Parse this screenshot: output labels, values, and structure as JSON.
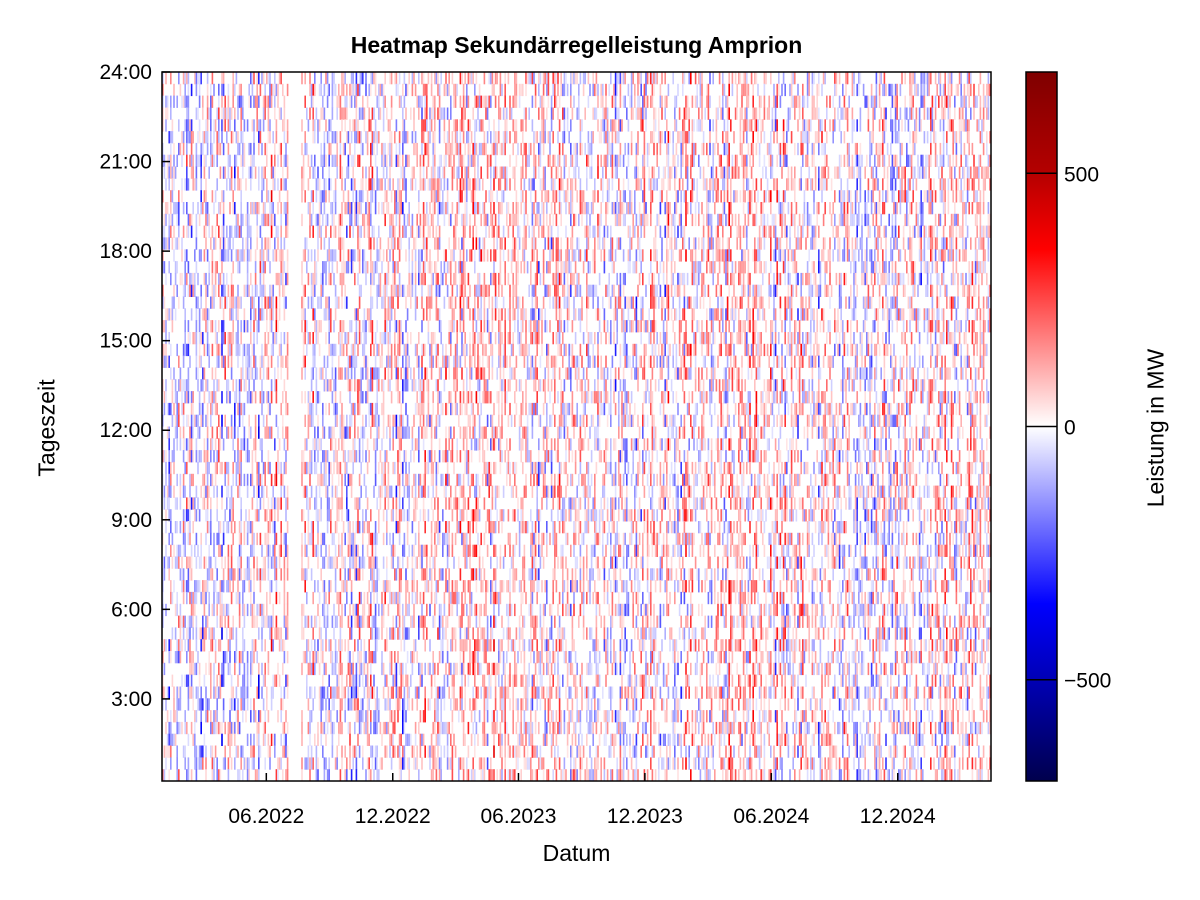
{
  "chart_data": {
    "type": "heatmap",
    "title": "Heatmap Sekundärregelleistung Amprion",
    "xlabel": "Datum",
    "ylabel": "Tageszeit",
    "x_range": [
      "2022-01-01",
      "2025-04-15"
    ],
    "y_range_hours": [
      0.25,
      24
    ],
    "x_ticks": [
      {
        "date": "2022-06-01",
        "label": "06.2022"
      },
      {
        "date": "2022-12-01",
        "label": "12.2022"
      },
      {
        "date": "2023-06-01",
        "label": "06.2023"
      },
      {
        "date": "2023-12-01",
        "label": "12.2023"
      },
      {
        "date": "2024-06-01",
        "label": "06.2024"
      },
      {
        "date": "2024-12-01",
        "label": "12.2024"
      }
    ],
    "y_ticks": [
      {
        "hour": 3,
        "label": "3:00"
      },
      {
        "hour": 6,
        "label": "6:00"
      },
      {
        "hour": 9,
        "label": "9:00"
      },
      {
        "hour": 12,
        "label": "12:00"
      },
      {
        "hour": 15,
        "label": "15:00"
      },
      {
        "hour": 18,
        "label": "18:00"
      },
      {
        "hour": 21,
        "label": "21:00"
      },
      {
        "hour": 24,
        "label": "24:00"
      }
    ],
    "colorbar": {
      "label": "Leistung in MW",
      "range": [
        -700,
        700
      ],
      "ticks": [
        {
          "value": -500,
          "label": "−500"
        },
        {
          "value": 0,
          "label": "0"
        },
        {
          "value": 500,
          "label": "500"
        }
      ],
      "colormap": [
        "#00004d",
        "#0000ff",
        "#ffffff",
        "#ff0000",
        "#7f0000"
      ]
    },
    "data_gap": {
      "from": "2022-07-01",
      "to": "2022-07-20"
    }
  }
}
